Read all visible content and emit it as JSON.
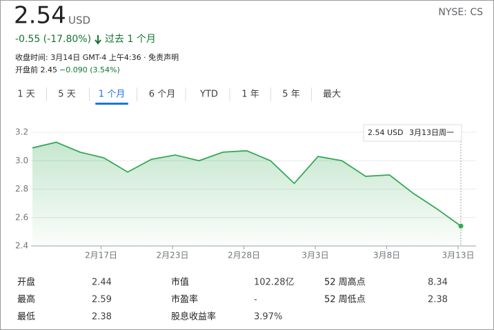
{
  "header": {
    "price": "2.54",
    "currency": "USD",
    "exchange": "NYSE: CS",
    "change": "-0.55 (-17.80%)",
    "period": "过去 1 个月",
    "note": "收盘时间: 3月14日 GMT-4 上午4:36 · 免责声明",
    "premarket": "开盘前 2.45",
    "premarket_change": "−0.090 (3.54%)"
  },
  "tabs": [
    "1 天",
    "5 天",
    "1 个月",
    "6 个月",
    "YTD",
    "1 年",
    "5 年",
    "最大"
  ],
  "selected_tab": 2,
  "chart_data": {
    "type": "line",
    "categories": [
      null,
      null,
      null,
      "2月17日",
      null,
      null,
      "2月23日",
      null,
      null,
      "2月28日",
      null,
      null,
      "3月3日",
      null,
      null,
      "3月8日",
      null,
      null,
      "3月13日"
    ],
    "series": [
      {
        "name": "CS",
        "color": "#34a853",
        "values": [
          3.09,
          3.13,
          3.06,
          3.02,
          2.92,
          3.01,
          3.04,
          3.0,
          3.06,
          3.07,
          3.0,
          2.84,
          3.03,
          3.0,
          2.89,
          2.9,
          2.77,
          2.66,
          2.54
        ]
      }
    ],
    "ylim": [
      2.4,
      3.2
    ],
    "yticks": [
      2.4,
      2.6,
      2.8,
      {
        "value": 3,
        "label": "3.0"
      },
      3.2
    ],
    "grid": true,
    "tooltip": {
      "value": "2.54 USD",
      "date": "3月13日周一"
    }
  },
  "stats": [
    [
      [
        "开盘",
        "2.44"
      ],
      [
        "市值",
        "102.28亿"
      ],
      [
        "52 周高点",
        "8.34"
      ]
    ],
    [
      [
        "最高",
        "2.59"
      ],
      [
        "市盈率",
        "-"
      ],
      [
        "52 周低点",
        "2.38"
      ]
    ],
    [
      [
        "最低",
        "2.38"
      ],
      [
        "股息收益率",
        "3.97%"
      ]
    ]
  ]
}
